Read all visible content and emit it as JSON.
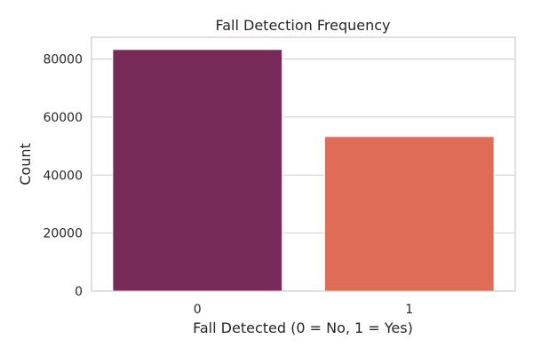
{
  "chart_data": {
    "type": "bar",
    "title": "Fall Detection Frequency",
    "xlabel": "Fall Detected (0 = No, 1 = Yes)",
    "ylabel": "Count",
    "categories": [
      "0",
      "1"
    ],
    "values": [
      83300,
      53300
    ],
    "colors": [
      "#782b59",
      "#de6d58"
    ],
    "ylim": [
      0,
      87500
    ],
    "yticks": [
      0,
      20000,
      40000,
      60000,
      80000
    ],
    "grid": true,
    "legend": "none"
  }
}
